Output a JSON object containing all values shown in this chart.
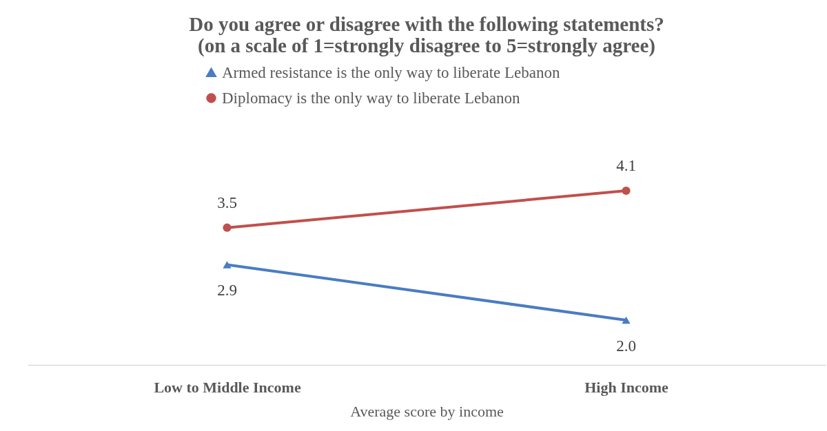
{
  "chart_data": {
    "type": "line",
    "title": "Do you agree or disagree with the following statements?\n(on a scale of 1=strongly disagree to 5=strongly agree)",
    "xlabel": "Average score by income",
    "tick_labels": "x",
    "categories": [
      "Low to Middle Income",
      "High Income"
    ],
    "series": [
      {
        "name": "Armed resistance is the only way to liberate Lebanon",
        "color": "#4a7cc1",
        "marker": "triangle",
        "values": [
          2.9,
          2.0
        ],
        "value_labels": [
          "2.9",
          "2.0"
        ]
      },
      {
        "name": "Diplomacy is the only way to liberate Lebanon",
        "color": "#c0504d",
        "marker": "circle",
        "values": [
          3.5,
          4.1
        ],
        "value_labels": [
          "3.5",
          "4.1"
        ]
      }
    ],
    "legend": "top"
  }
}
